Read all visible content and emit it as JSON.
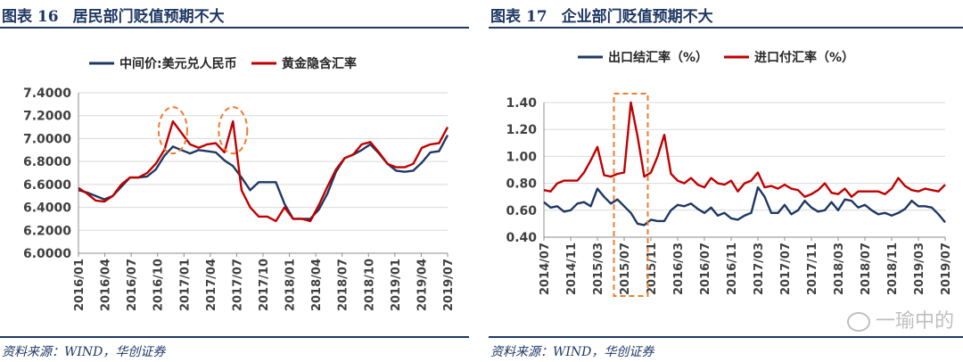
{
  "figures": [
    {
      "fig_label": "图表 16",
      "title": "居民部门贬值预期不大",
      "source": "资料来源：WIND，华创证券"
    },
    {
      "fig_label": "图表 17",
      "title": "企业部门贬值预期不大",
      "source": "资料来源：WIND，华创证券"
    }
  ],
  "watermark": "一瑜中的",
  "colors": {
    "blue": "#1f3864",
    "red": "#c00000",
    "orange": "#ed7d31",
    "grid": "#d9d9d9"
  },
  "chart_data": [
    {
      "type": "line",
      "title": "",
      "xlabel": "",
      "ylabel": "",
      "ylim": [
        6.0,
        7.4
      ],
      "yticks": [
        "6.0000",
        "6.2000",
        "6.4000",
        "6.6000",
        "6.8000",
        "7.0000",
        "7.2000",
        "7.4000"
      ],
      "x_tick_labels": [
        "2016/01",
        "2016/04",
        "2016/07",
        "2016/10",
        "2017/01",
        "2017/04",
        "2017/07",
        "2017/10",
        "2018/01",
        "2018/04",
        "2018/07",
        "2018/10",
        "2019/01",
        "2019/04",
        "2019/07"
      ],
      "legend": "top",
      "x": [
        "2016/01",
        "2016/02",
        "2016/03",
        "2016/04",
        "2016/05",
        "2016/06",
        "2016/07",
        "2016/08",
        "2016/09",
        "2016/10",
        "2016/11",
        "2016/12",
        "2017/01",
        "2017/02",
        "2017/03",
        "2017/04",
        "2017/05",
        "2017/06",
        "2017/07",
        "2017/08",
        "2017/09",
        "2017/10",
        "2017/11",
        "2017/12",
        "2018/01",
        "2018/02",
        "2018/03",
        "2018/04",
        "2018/05",
        "2018/06",
        "2018/07",
        "2018/08",
        "2018/09",
        "2018/10",
        "2018/11",
        "2018/12",
        "2019/01",
        "2019/02",
        "2019/03",
        "2019/04",
        "2019/05",
        "2019/06",
        "2019/07",
        "2019/08"
      ],
      "series": [
        {
          "name": "中间价:美元兑人民币",
          "color": "#1f3864",
          "values": [
            6.55,
            6.53,
            6.5,
            6.47,
            6.5,
            6.58,
            6.66,
            6.66,
            6.67,
            6.73,
            6.85,
            6.93,
            6.9,
            6.87,
            6.9,
            6.89,
            6.88,
            6.81,
            6.76,
            6.66,
            6.55,
            6.62,
            6.62,
            6.62,
            6.43,
            6.3,
            6.3,
            6.3,
            6.38,
            6.52,
            6.71,
            6.83,
            6.86,
            6.9,
            6.95,
            6.87,
            6.78,
            6.72,
            6.71,
            6.72,
            6.79,
            6.88,
            6.89,
            7.03
          ]
        },
        {
          "name": "黄金隐含汇率",
          "color": "#c00000",
          "values": [
            6.57,
            6.52,
            6.46,
            6.45,
            6.5,
            6.6,
            6.66,
            6.66,
            6.7,
            6.78,
            6.9,
            7.15,
            7.05,
            6.95,
            6.92,
            6.95,
            6.96,
            6.88,
            7.15,
            6.55,
            6.4,
            6.32,
            6.32,
            6.28,
            6.4,
            6.3,
            6.3,
            6.28,
            6.42,
            6.58,
            6.73,
            6.83,
            6.86,
            6.95,
            6.97,
            6.88,
            6.78,
            6.75,
            6.75,
            6.78,
            6.92,
            6.95,
            6.96,
            7.1
          ]
        }
      ],
      "annotations": [
        "2016/12",
        "2017/07"
      ]
    },
    {
      "type": "line",
      "title": "",
      "xlabel": "",
      "ylabel": "",
      "ylim": [
        0.4,
        1.4
      ],
      "yticks": [
        "0.40",
        "0.60",
        "0.80",
        "1.00",
        "1.20",
        "1.40"
      ],
      "x_tick_labels": [
        "2014/07",
        "2014/11",
        "2015/03",
        "2015/07",
        "2015/11",
        "2016/03",
        "2016/07",
        "2016/11",
        "2017/03",
        "2017/07",
        "2017/11",
        "2018/03",
        "2018/07",
        "2018/11",
        "2019/03",
        "2019/07"
      ],
      "legend": "top",
      "x": [
        "2014/07",
        "2014/08",
        "2014/09",
        "2014/10",
        "2014/11",
        "2014/12",
        "2015/01",
        "2015/02",
        "2015/03",
        "2015/04",
        "2015/05",
        "2015/06",
        "2015/07",
        "2015/08",
        "2015/09",
        "2015/10",
        "2015/11",
        "2015/12",
        "2016/01",
        "2016/02",
        "2016/03",
        "2016/04",
        "2016/05",
        "2016/06",
        "2016/07",
        "2016/08",
        "2016/09",
        "2016/10",
        "2016/11",
        "2016/12",
        "2017/01",
        "2017/02",
        "2017/03",
        "2017/04",
        "2017/05",
        "2017/06",
        "2017/07",
        "2017/08",
        "2017/09",
        "2017/10",
        "2017/11",
        "2017/12",
        "2018/01",
        "2018/02",
        "2018/03",
        "2018/04",
        "2018/05",
        "2018/06",
        "2018/07",
        "2018/08",
        "2018/09",
        "2018/10",
        "2018/11",
        "2018/12",
        "2019/01",
        "2019/02",
        "2019/03",
        "2019/04",
        "2019/05",
        "2019/06",
        "2019/07"
      ],
      "series": [
        {
          "name": "出口结汇率（%）",
          "color": "#1f3864",
          "values": [
            0.66,
            0.62,
            0.63,
            0.59,
            0.6,
            0.65,
            0.66,
            0.63,
            0.76,
            0.7,
            0.65,
            0.68,
            0.63,
            0.58,
            0.5,
            0.49,
            0.53,
            0.52,
            0.52,
            0.6,
            0.64,
            0.63,
            0.65,
            0.61,
            0.58,
            0.62,
            0.56,
            0.58,
            0.54,
            0.53,
            0.56,
            0.58,
            0.77,
            0.7,
            0.58,
            0.58,
            0.64,
            0.57,
            0.6,
            0.67,
            0.62,
            0.59,
            0.6,
            0.66,
            0.6,
            0.68,
            0.67,
            0.62,
            0.64,
            0.6,
            0.57,
            0.58,
            0.56,
            0.58,
            0.61,
            0.67,
            0.63,
            0.63,
            0.62,
            0.57,
            0.51
          ]
        },
        {
          "name": "进口付汇率（%）",
          "color": "#c00000",
          "values": [
            0.75,
            0.74,
            0.8,
            0.82,
            0.82,
            0.82,
            0.88,
            0.97,
            1.07,
            0.86,
            0.85,
            0.87,
            0.88,
            1.4,
            1.15,
            0.85,
            0.88,
            1.0,
            1.16,
            0.87,
            0.82,
            0.8,
            0.84,
            0.79,
            0.77,
            0.84,
            0.8,
            0.79,
            0.82,
            0.74,
            0.8,
            0.82,
            0.88,
            0.77,
            0.78,
            0.76,
            0.79,
            0.76,
            0.75,
            0.7,
            0.72,
            0.75,
            0.8,
            0.73,
            0.72,
            0.76,
            0.7,
            0.74,
            0.74,
            0.74,
            0.74,
            0.72,
            0.76,
            0.84,
            0.78,
            0.75,
            0.74,
            0.76,
            0.75,
            0.74,
            0.79
          ]
        }
      ],
      "annotations": [
        "2015/08"
      ]
    }
  ]
}
